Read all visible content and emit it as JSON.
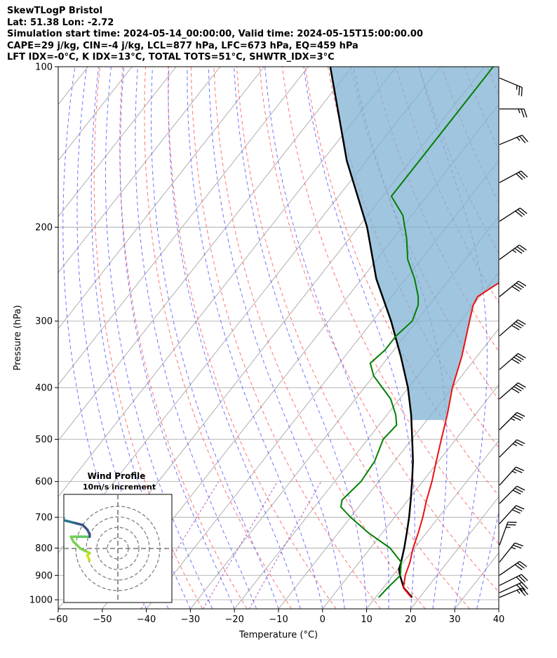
{
  "header": {
    "title": "SkewTLogP Bristol",
    "location": "Lat: 51.38   Lon: -2.72",
    "times": "Simulation start time: 2024-05-14_00:00:00, Valid time: 2024-05-15T15:00:00.00",
    "params": "CAPE=29 j/kg, CIN=-4 j/kg, LCL=877 hPa, LFC=673 hPa, EQ=459 hPa",
    "indices": "LFT IDX=-0°C, K IDX=13°C, TOTAL TOTS=51°C, SHWTR_IDX=3°C"
  },
  "chart_data": {
    "type": "line",
    "xlabel": "Temperature (°C)",
    "ylabel": "Pressure (hPa)",
    "xlim": [
      -60,
      40
    ],
    "ylim": [
      1040,
      100
    ],
    "y_scale": "log",
    "x_ticks": [
      -60,
      -50,
      -40,
      -30,
      -20,
      -10,
      0,
      10,
      20,
      30,
      40
    ],
    "y_ticks": [
      100,
      200,
      300,
      400,
      500,
      600,
      700,
      800,
      900,
      1000
    ],
    "grid": true,
    "series": [
      {
        "role": "temperature",
        "color": "#ee1111",
        "pressure": [
          990,
          950,
          900,
          850,
          800,
          750,
          700,
          650,
          600,
          550,
          500,
          450,
          400,
          350,
          300,
          280,
          270,
          250,
          230,
          210,
          190,
          170,
          150,
          135,
          120,
          110,
          100
        ],
        "temp": [
          18.1,
          14.6,
          12.8,
          11.5,
          9.7,
          8.2,
          6.4,
          4.2,
          2.1,
          -0.5,
          -3.3,
          -6.3,
          -10.0,
          -13.4,
          -18.0,
          -20.0,
          -20.5,
          -17.5,
          -14.0,
          -10.0,
          -9.0,
          -9.0,
          -10.0,
          -12.0,
          -12.0,
          -13.0,
          -14.5
        ]
      },
      {
        "role": "dewpoint",
        "color": "#007f00",
        "pressure": [
          990,
          950,
          900,
          850,
          800,
          750,
          700,
          670,
          650,
          600,
          550,
          500,
          470,
          450,
          420,
          380,
          360,
          340,
          320,
          300,
          280,
          270,
          250,
          230,
          210,
          190,
          175,
          170,
          150,
          130,
          110,
          100
        ],
        "temp": [
          10.7,
          11.0,
          11.7,
          9.5,
          4.5,
          -3.0,
          -10.0,
          -14.0,
          -15.0,
          -14.0,
          -14.5,
          -16.5,
          -16.0,
          -18.0,
          -22.0,
          -30.0,
          -33.0,
          -32.0,
          -32.0,
          -31.0,
          -32.5,
          -34.0,
          -38.0,
          -43.0,
          -47.0,
          -52.0,
          -58.0,
          -58.0,
          -58.0,
          -58.0,
          -58.0,
          -58.0
        ]
      },
      {
        "role": "parcel",
        "color": "#000000",
        "pressure": [
          990,
          950,
          900,
          877,
          850,
          800,
          750,
          700,
          650,
          600,
          550,
          500,
          450,
          400,
          350,
          300,
          250,
          200,
          150,
          100
        ],
        "temp": [
          18.3,
          14.7,
          11.6,
          10.3,
          9.5,
          7.7,
          5.6,
          3.3,
          0.6,
          -2.4,
          -5.8,
          -9.9,
          -14.5,
          -20.1,
          -27.2,
          -35.8,
          -46.7,
          -58.0,
          -74.5,
          -95.0
        ]
      }
    ],
    "wind_barbs": [
      {
        "pressure": 990,
        "u": -12,
        "v": -5
      },
      {
        "pressure": 970,
        "u": -13,
        "v": -6
      },
      {
        "pressure": 940,
        "u": -14,
        "v": -7
      },
      {
        "pressure": 900,
        "u": -13,
        "v": -9
      },
      {
        "pressure": 850,
        "u": -8,
        "v": -10
      },
      {
        "pressure": 790,
        "u": -4,
        "v": -11
      },
      {
        "pressure": 720,
        "u": -10,
        "v": -11
      },
      {
        "pressure": 660,
        "u": -11,
        "v": -11
      },
      {
        "pressure": 610,
        "u": -9,
        "v": -10
      },
      {
        "pressure": 540,
        "u": -10,
        "v": -10
      },
      {
        "pressure": 480,
        "u": -12,
        "v": -12
      },
      {
        "pressure": 420,
        "u": -15,
        "v": -13
      },
      {
        "pressure": 370,
        "u": -15,
        "v": -13
      },
      {
        "pressure": 320,
        "u": -16,
        "v": -14
      },
      {
        "pressure": 270,
        "u": -16,
        "v": -13
      },
      {
        "pressure": 230,
        "u": -15,
        "v": -11
      },
      {
        "pressure": 195,
        "u": -14,
        "v": -9
      },
      {
        "pressure": 165,
        "u": -13,
        "v": -7
      },
      {
        "pressure": 140,
        "u": -12,
        "v": -5
      },
      {
        "pressure": 120,
        "u": -14,
        "v": 0
      },
      {
        "pressure": 105,
        "u": -12,
        "v": 5
      }
    ],
    "hodograph": {
      "title": "Wind Profile",
      "subtitle": "10m/s increment",
      "ring_step": 10,
      "rings": 4,
      "points": [
        {
          "u": -12,
          "v": -5,
          "color": "#d4e21b"
        },
        {
          "u": -13,
          "v": -3,
          "color": "#d4e21b"
        },
        {
          "u": -12,
          "v": -2,
          "color": "#a8db34"
        },
        {
          "u": -14,
          "v": -1,
          "color": "#7ad151"
        },
        {
          "u": -16,
          "v": 0,
          "color": "#7ad151"
        },
        {
          "u": -17,
          "v": 1,
          "color": "#7ad151"
        },
        {
          "u": -19,
          "v": 3,
          "color": "#7ad151"
        },
        {
          "u": -20,
          "v": 5,
          "color": "#7ad151"
        },
        {
          "u": -17,
          "v": 5,
          "color": "#5ec962"
        },
        {
          "u": -12,
          "v": 5,
          "color": "#3b528b"
        },
        {
          "u": -12,
          "v": 6,
          "color": "#3b528b"
        },
        {
          "u": -13,
          "v": 8,
          "color": "#3b528b"
        },
        {
          "u": -15,
          "v": 10,
          "color": "#3b528b"
        },
        {
          "u": -19,
          "v": 11,
          "color": "#2c728e"
        },
        {
          "u": -23,
          "v": 12,
          "color": "#2c728e"
        },
        {
          "u": -24,
          "v": 13,
          "color": "#21918c"
        },
        {
          "u": -24,
          "v": 14,
          "color": "#21918c"
        },
        {
          "u": -23,
          "v": 13,
          "color": "#22a884"
        }
      ]
    }
  }
}
